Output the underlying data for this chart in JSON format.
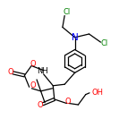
{
  "bg_color": "#ffffff",
  "bond_color": "#000000",
  "N_color": "#0000ff",
  "O_color": "#ff0000",
  "Cl_color": "#008000",
  "figsize": [
    1.52,
    1.52
  ],
  "dpi": 100,
  "bond_lw": 0.9,
  "font_size": 6.0,
  "xlim": [
    0,
    10
  ],
  "ylim": [
    0,
    10
  ]
}
